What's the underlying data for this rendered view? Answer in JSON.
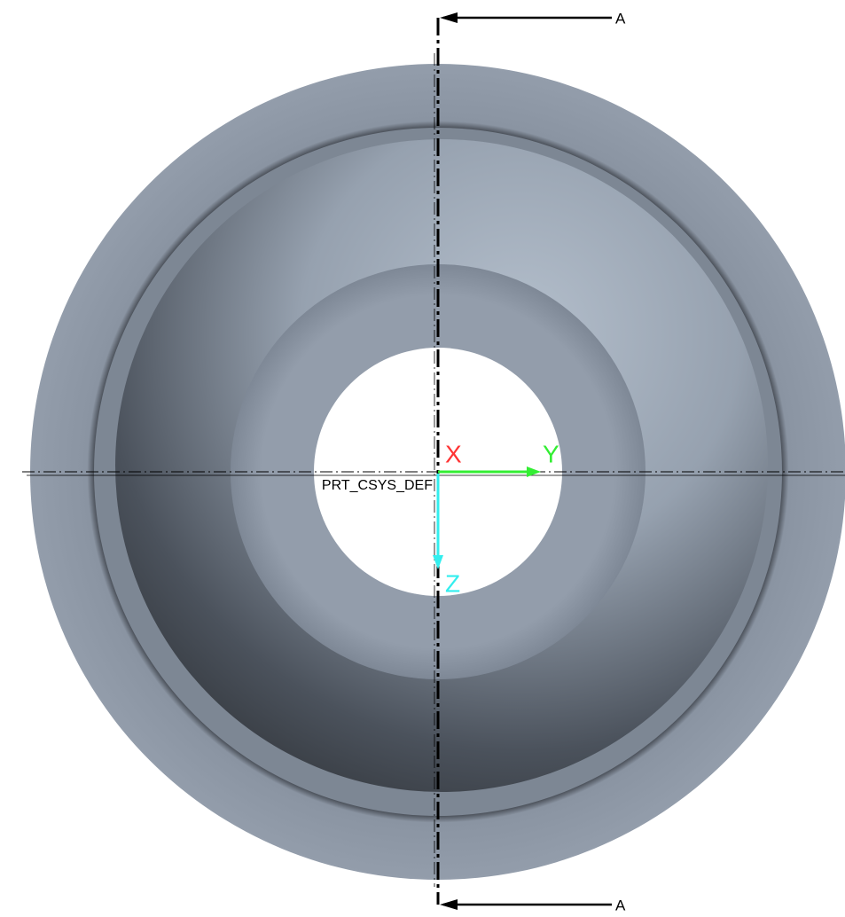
{
  "section": {
    "label_top": "A",
    "label_bottom": "A"
  },
  "csys": {
    "name": "PRT_CSYS_DEF",
    "x_label": "X",
    "y_label": "Y",
    "z_label": "Z"
  }
}
